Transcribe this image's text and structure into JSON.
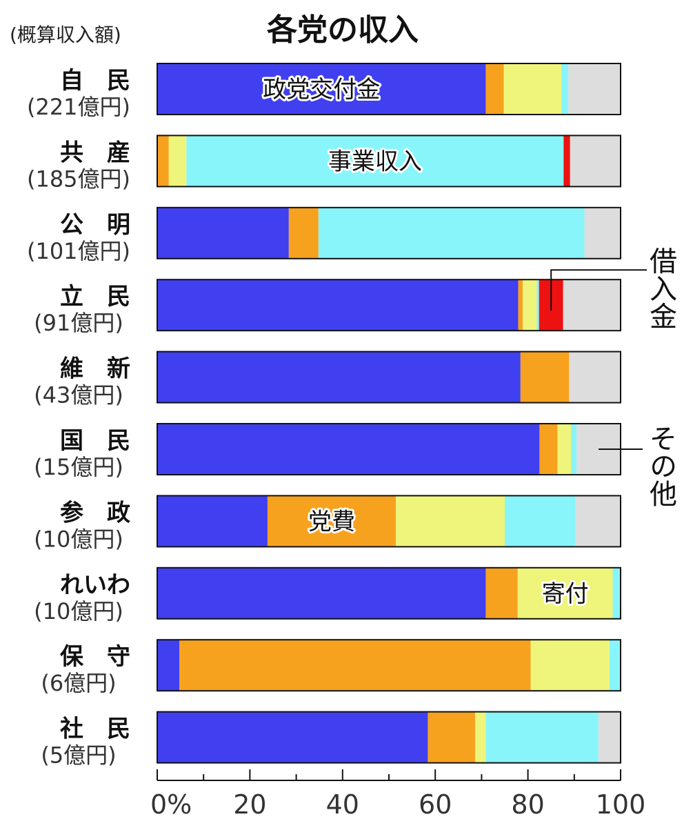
{
  "chart_data": {
    "type": "bar",
    "orientation": "horizontal",
    "stacked": true,
    "title": "各党の収入",
    "subtitle": "(概算収入額)",
    "categories": [
      {
        "name": "自　民",
        "amount": "(221億円)"
      },
      {
        "name": "共　産",
        "amount": "(185億円)"
      },
      {
        "name": "公　明",
        "amount": "(101億円)"
      },
      {
        "name": "立　民",
        "amount": "(91億円)"
      },
      {
        "name": "維　新",
        "amount": "(43億円)"
      },
      {
        "name": "国　民",
        "amount": "(15億円)"
      },
      {
        "name": "参　政",
        "amount": "(10億円)"
      },
      {
        "name": "れいわ",
        "amount": "(10億円)"
      },
      {
        "name": "保　守",
        "amount": "(6億円)"
      },
      {
        "name": "社　民",
        "amount": "(5億円)"
      }
    ],
    "series": [
      {
        "name": "政党交付金",
        "color": "#4040f0",
        "values": [
          70.9,
          0,
          28.4,
          77.9,
          78.4,
          82.5,
          23.8,
          70.9,
          4.8,
          58.4
        ]
      },
      {
        "name": "党費",
        "color": "#f7a21e",
        "values": [
          3.9,
          2.5,
          6.4,
          1.0,
          10.5,
          3.9,
          27.7,
          6.9,
          75.8,
          10.2
        ]
      },
      {
        "name": "寄付",
        "color": "#eef57a",
        "values": [
          12.4,
          3.8,
          0,
          3.0,
          0,
          2.9,
          23.5,
          20.5,
          17.0,
          2.3
        ]
      },
      {
        "name": "事業収入",
        "color": "#88f5fb",
        "values": [
          1.5,
          81.4,
          57.4,
          0.5,
          0,
          1.2,
          15.3,
          1.7,
          2.4,
          24.3
        ]
      },
      {
        "name": "借入金",
        "color": "#ee1111",
        "values": [
          0,
          1.4,
          0,
          5.2,
          0,
          0,
          0,
          0,
          0,
          0
        ]
      },
      {
        "name": "その他",
        "color": "#dddddd",
        "values": [
          11.3,
          10.9,
          7.8,
          12.4,
          11.1,
          9.5,
          9.7,
          0,
          0,
          4.8
        ]
      }
    ],
    "annotations": [
      {
        "text": "政党交付金",
        "row": 0,
        "series": 0
      },
      {
        "text": "事業収入",
        "row": 1,
        "series": 3
      },
      {
        "text": "党費",
        "row": 6,
        "series": 1
      },
      {
        "text": "寄付",
        "row": 7,
        "series": 2
      },
      {
        "text": "借入金",
        "row": 3,
        "series": 4,
        "callout": "right"
      },
      {
        "text": "その他",
        "row": 5,
        "series": 5,
        "callout": "right"
      }
    ],
    "x_ticks": [
      "0%",
      "20",
      "40",
      "60",
      "80",
      "100"
    ],
    "xlim": [
      0,
      100
    ]
  }
}
